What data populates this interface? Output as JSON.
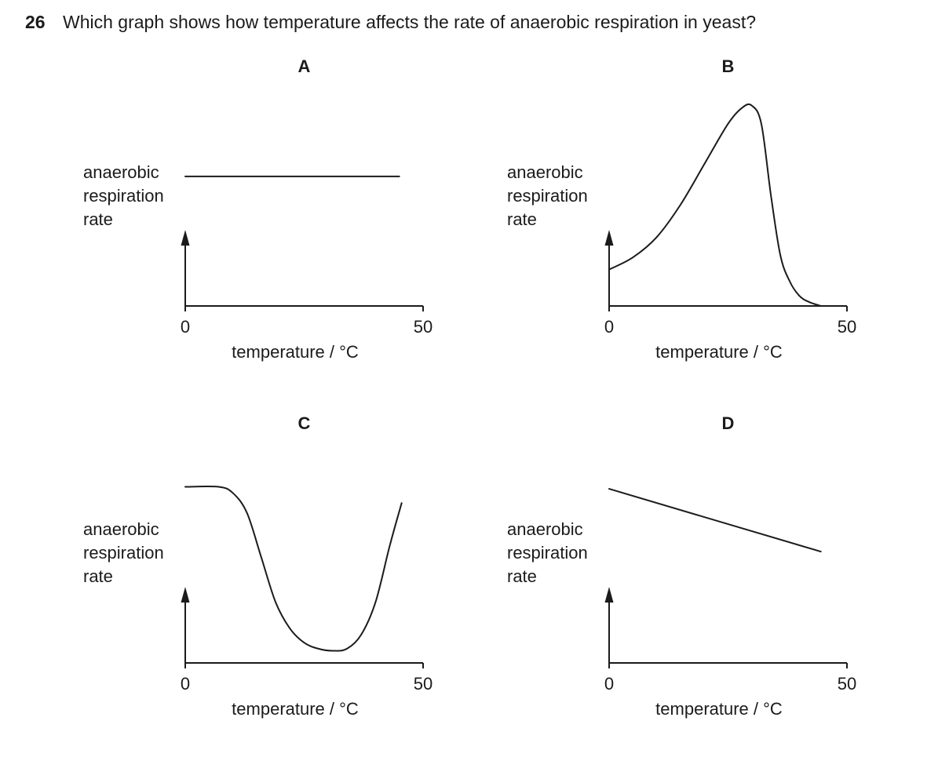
{
  "question": {
    "number": "26",
    "text": "Which graph shows how temperature affects the rate of anaerobic respiration in yeast?"
  },
  "colors": {
    "ink": "#1b1b1b",
    "background": "#ffffff"
  },
  "chart_data": [
    {
      "type": "line",
      "title": "A",
      "ylabel": [
        "anaerobic",
        "respiration",
        "rate"
      ],
      "xlabel": "temperature / °C",
      "xticks": [
        "0",
        "50"
      ],
      "xlim": [
        0,
        50
      ],
      "ylim": [
        0,
        1
      ],
      "grid": false,
      "series": [
        {
          "x": [
            0,
            45
          ],
          "y": [
            0.64,
            0.64
          ]
        }
      ]
    },
    {
      "type": "line",
      "title": "B",
      "ylabel": [
        "anaerobic",
        "respiration",
        "rate"
      ],
      "xlabel": "temperature / °C",
      "xticks": [
        "0",
        "50"
      ],
      "xlim": [
        0,
        50
      ],
      "ylim": [
        0,
        1
      ],
      "grid": false,
      "series": [
        {
          "x": [
            0,
            5,
            10,
            15,
            20,
            25,
            28,
            30,
            32,
            34,
            36,
            38,
            40,
            42,
            44.5
          ],
          "y": [
            0.18,
            0.24,
            0.34,
            0.5,
            0.7,
            0.9,
            0.98,
            0.99,
            0.9,
            0.55,
            0.25,
            0.12,
            0.05,
            0.02,
            0.0
          ]
        }
      ]
    },
    {
      "type": "line",
      "title": "C",
      "ylabel": [
        "anaerobic",
        "respiration",
        "rate"
      ],
      "xlabel": "temperature / °C",
      "xticks": [
        "0",
        "50"
      ],
      "xlim": [
        0,
        50
      ],
      "ylim": [
        0,
        1
      ],
      "grid": false,
      "series": [
        {
          "x": [
            0,
            7,
            10,
            13,
            16,
            19,
            22,
            25,
            28,
            31,
            34,
            37,
            40,
            43,
            45.5
          ],
          "y": [
            0.87,
            0.87,
            0.84,
            0.74,
            0.52,
            0.3,
            0.17,
            0.1,
            0.07,
            0.06,
            0.07,
            0.14,
            0.3,
            0.58,
            0.79
          ]
        }
      ]
    },
    {
      "type": "line",
      "title": "D",
      "ylabel": [
        "anaerobic",
        "respiration",
        "rate"
      ],
      "xlabel": "temperature / °C",
      "xticks": [
        "0",
        "50"
      ],
      "xlim": [
        0,
        50
      ],
      "ylim": [
        0,
        1
      ],
      "grid": false,
      "series": [
        {
          "x": [
            0,
            44.5
          ],
          "y": [
            0.86,
            0.55
          ]
        }
      ]
    }
  ]
}
